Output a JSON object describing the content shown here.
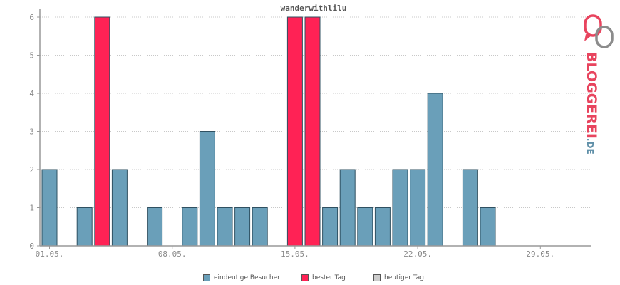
{
  "colors": {
    "visitors": "#6a9fb9",
    "best": "#ff2255",
    "today": "#cccccc",
    "bar_border": "#2f5061",
    "grid": "#c8c8c8",
    "axis": "#999999",
    "logo_red": "#e8445e",
    "logo_gray": "#8c8c8c",
    "logo_blue": "#5f8fa8"
  },
  "logo": {
    "text": "BLOGGEREI",
    "suffix": ".DE",
    "icon": "bloggerei-logo-icon"
  },
  "legend": [
    {
      "label": "eindeutige Besucher",
      "color_key": "visitors"
    },
    {
      "label": "bester Tag",
      "color_key": "best"
    },
    {
      "label": "heutiger Tag",
      "color_key": "today"
    }
  ],
  "chart_data": {
    "type": "bar",
    "title": "wanderwithlilu",
    "xlabel": "",
    "ylabel": "",
    "ylim": [
      0,
      6
    ],
    "yticks": [
      0,
      1,
      2,
      3,
      4,
      5,
      6
    ],
    "grid": true,
    "legend_position": "bottom",
    "categories": [
      "01.05.",
      "02.05.",
      "03.05.",
      "04.05.",
      "05.05.",
      "06.05.",
      "07.05.",
      "08.05.",
      "09.05.",
      "10.05.",
      "11.05.",
      "12.05.",
      "13.05.",
      "14.05.",
      "15.05.",
      "16.05.",
      "17.05.",
      "18.05.",
      "19.05.",
      "20.05.",
      "21.05.",
      "22.05.",
      "23.05.",
      "24.05.",
      "25.05.",
      "26.05.",
      "27.05.",
      "28.05.",
      "29.05.",
      "30.05.",
      "31.05."
    ],
    "xtick_labels": [
      "01.05.",
      "08.05.",
      "15.05.",
      "22.05.",
      "29.05."
    ],
    "series": [
      {
        "name": "eindeutige Besucher",
        "values": [
          2,
          0,
          1,
          6,
          2,
          0,
          1,
          0,
          1,
          3,
          1,
          1,
          1,
          0,
          6,
          6,
          1,
          2,
          1,
          1,
          2,
          2,
          4,
          0,
          2,
          1,
          0,
          0,
          0,
          0,
          0
        ]
      }
    ],
    "best_day_indices": [
      3,
      14,
      15
    ]
  }
}
